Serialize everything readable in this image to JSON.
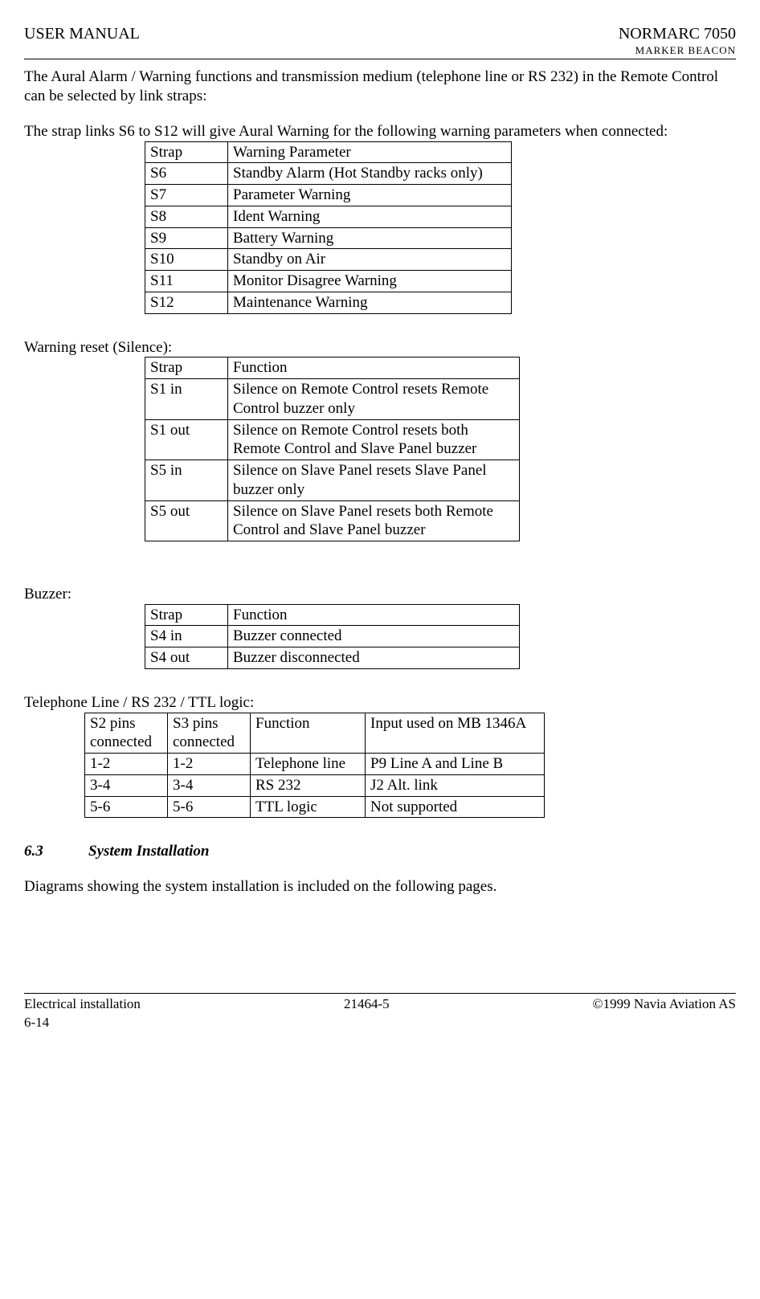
{
  "header": {
    "left": "USER MANUAL",
    "right_title": "NORMARC 7050",
    "right_subtitle": "MARKER BEACON"
  },
  "paragraphs": {
    "p1": "The Aural Alarm / Warning functions and transmission medium (telephone line or RS 232) in the Remote Control can be selected by link straps:",
    "p2": "The strap links S6 to S12 will give Aural Warning for the following warning parameters when connected:",
    "p3": "Warning reset (Silence):",
    "p4": "Buzzer:",
    "p5": "Telephone Line / RS 232 / TTL logic:",
    "p6": "Diagrams showing the system installation is included on the following pages."
  },
  "table1": {
    "rows": [
      [
        "Strap",
        "Warning Parameter"
      ],
      [
        "S6",
        "Standby Alarm (Hot Standby racks only)"
      ],
      [
        "S7",
        "Parameter Warning"
      ],
      [
        "S8",
        "Ident Warning"
      ],
      [
        "S9",
        "Battery Warning"
      ],
      [
        "S10",
        "Standby on Air"
      ],
      [
        "S11",
        "Monitor Disagree Warning"
      ],
      [
        "S12",
        "Maintenance Warning"
      ]
    ]
  },
  "table2": {
    "rows": [
      [
        "Strap",
        "Function"
      ],
      [
        "S1 in",
        "Silence on Remote Control resets Remote Control buzzer only"
      ],
      [
        "S1 out",
        "Silence on Remote Control resets both Remote Control and Slave Panel buzzer"
      ],
      [
        "S5 in",
        "Silence on Slave Panel resets Slave Panel buzzer only"
      ],
      [
        "S5 out",
        "Silence on Slave Panel resets both Remote Control and Slave Panel buzzer"
      ]
    ]
  },
  "table3": {
    "rows": [
      [
        "Strap",
        "Function"
      ],
      [
        "S4 in",
        "Buzzer connected"
      ],
      [
        "S4 out",
        "Buzzer disconnected"
      ]
    ]
  },
  "table4": {
    "rows": [
      [
        "S2 pins connected",
        "S3 pins connected",
        "Function",
        "Input used on MB 1346A"
      ],
      [
        "1-2",
        "1-2",
        "Telephone line",
        "P9 Line A and Line B"
      ],
      [
        "3-4",
        "3-4",
        "RS 232",
        "J2 Alt. link"
      ],
      [
        "5-6",
        "5-6",
        "TTL logic",
        "Not supported"
      ]
    ]
  },
  "section": {
    "num": "6.3",
    "title": "System Installation"
  },
  "footer": {
    "left": "Electrical installation",
    "center": "21464-5",
    "right": "©1999 Navia Aviation AS",
    "page": "6-14"
  }
}
